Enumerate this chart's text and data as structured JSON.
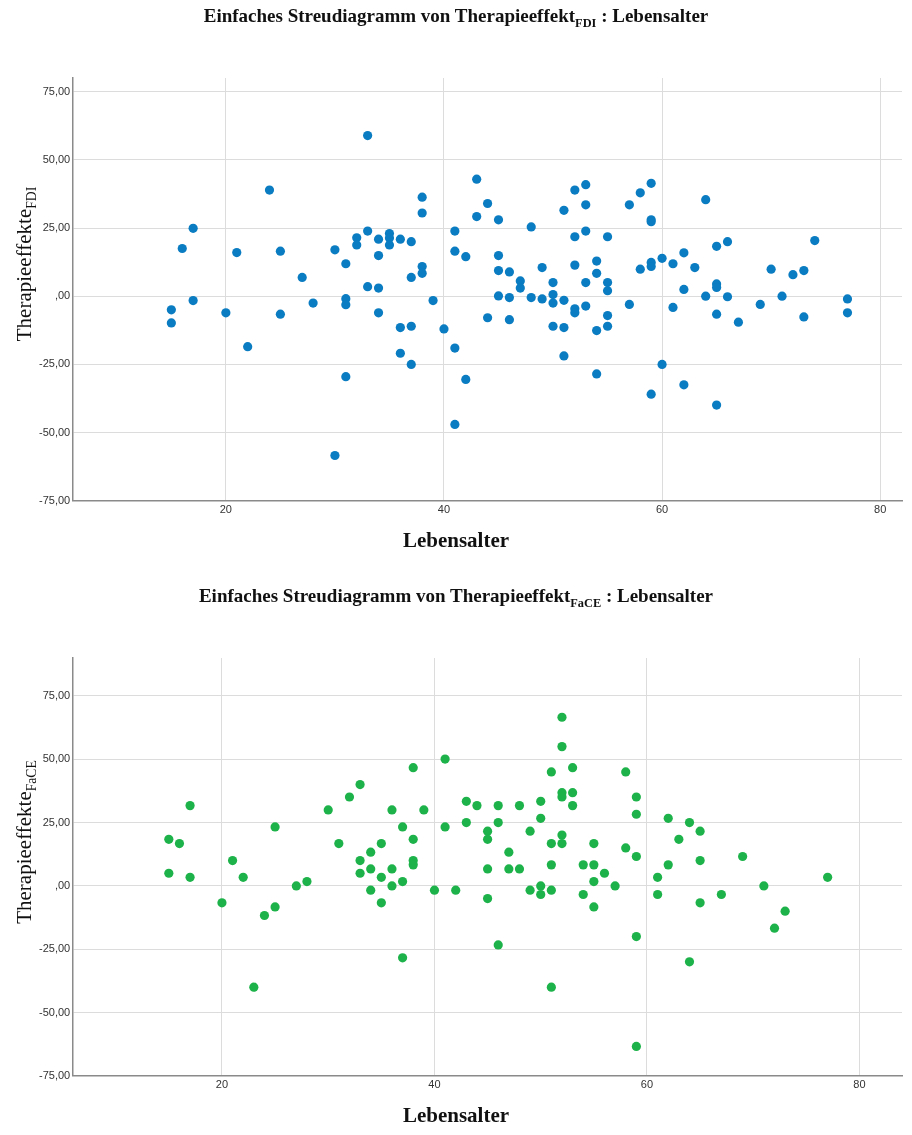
{
  "chart_data": [
    {
      "type": "scatter",
      "title": "Einfaches Streudiagramm von Therapieeffekt$_{FDI}$ : Lebensalter",
      "xlabel": "Lebensalter",
      "ylabel": "Therapieeffekte$_{FDI}$",
      "x": [
        33,
        24,
        43,
        44,
        38,
        38,
        43,
        17,
        41,
        33,
        32,
        32,
        34,
        35,
        35,
        35,
        36,
        37,
        16,
        21,
        25,
        30,
        34,
        41,
        42,
        31,
        38,
        38,
        27,
        37,
        33,
        34,
        17,
        39,
        31,
        31,
        28,
        15,
        15,
        20,
        25,
        34,
        44,
        36,
        37,
        40,
        22,
        41,
        36,
        37,
        31,
        42,
        41,
        30,
        45,
        48,
        45,
        45,
        45,
        46,
        46,
        46,
        47,
        47,
        48,
        49,
        49,
        50,
        50,
        50,
        50,
        51,
        51,
        51,
        51,
        52,
        52,
        52,
        52,
        52,
        53,
        53,
        53,
        53,
        53,
        54,
        54,
        54,
        54,
        55,
        55,
        55,
        55,
        55,
        57,
        57,
        58,
        58,
        59,
        59,
        59,
        59,
        59,
        59,
        60,
        60,
        61,
        61,
        62,
        62,
        62,
        63,
        64,
        64,
        65,
        65,
        65,
        65,
        65,
        66,
        66,
        67,
        69,
        70,
        71,
        72,
        73,
        73,
        74,
        77,
        77
      ],
      "values": [
        58.9,
        38.9,
        42.9,
        34,
        36.3,
        30.5,
        29.2,
        24.9,
        23.9,
        23.9,
        21.4,
        18.8,
        20.9,
        23,
        21.3,
        18.8,
        20.9,
        20,
        17.5,
        16,
        16.5,
        17,
        14.9,
        16.5,
        14.5,
        11.9,
        10.9,
        8.4,
        6.9,
        6.9,
        3.5,
        3,
        -1.6,
        -1.6,
        -0.9,
        -3.1,
        -2.5,
        -5,
        -9.8,
        -6.1,
        -6.6,
        -6.1,
        -7.9,
        -11.5,
        -11,
        -12,
        -18.5,
        -19,
        -20.9,
        -25,
        -29.5,
        -30.5,
        -47,
        -58.4,
        28,
        25.4,
        14.9,
        9.4,
        0.1,
        8.9,
        -0.5,
        -8.6,
        5.6,
        3,
        -0.5,
        10.5,
        -1,
        5,
        0.6,
        -2.5,
        -11,
        31.5,
        -1.5,
        -11.5,
        -21.9,
        38.9,
        21.8,
        11.4,
        -4.6,
        -6.1,
        40.9,
        33.5,
        23.9,
        5,
        -3.6,
        12.9,
        8.4,
        -12.6,
        -28.5,
        21.8,
        5,
        2,
        -7.1,
        -11,
        33.5,
        -3,
        37.9,
        9.9,
        41.4,
        28,
        27.3,
        12.4,
        10.9,
        -35.9,
        13.9,
        -25,
        11.9,
        -4.1,
        15.9,
        2.5,
        -32.5,
        10.5,
        35.4,
        0,
        18.3,
        4.5,
        3.2,
        -6.6,
        -39.9,
        20,
        -0.2,
        -9.5,
        -3,
        9.9,
        0,
        7.9,
        9.4,
        -7.6,
        20.4,
        -1,
        -6.1
      ],
      "color": "#0a7cc1",
      "marker": "circle",
      "grid": true,
      "xlim": [
        6,
        82
      ],
      "xticks": [
        20,
        40,
        60,
        80
      ],
      "ylim": [
        -75,
        80
      ],
      "yticks": [
        {
          "value": -75,
          "label": "-75,00"
        },
        {
          "value": -50,
          "label": "-50,00"
        },
        {
          "value": -25,
          "label": "-25,00"
        },
        {
          "value": 0,
          "label": ",00"
        },
        {
          "value": 25,
          "label": "25,00"
        },
        {
          "value": 50,
          "label": "50,00"
        },
        {
          "value": 75,
          "label": "75,00"
        }
      ]
    },
    {
      "type": "scatter",
      "title": "Einfaches Streudiagramm von Therapieeffekt$_{FaCE}$ : Lebensalter",
      "xlabel": "Lebensalter",
      "ylabel": "Therapieeffekte$_{FaCE}$",
      "x": [
        15,
        15,
        16,
        17,
        17,
        20,
        21,
        22,
        23,
        24,
        25,
        25,
        27,
        28,
        30,
        31,
        32,
        33,
        33,
        33,
        34,
        34,
        34,
        35,
        35,
        35,
        36,
        36,
        36,
        37,
        37,
        37,
        38,
        38,
        38,
        38,
        39,
        40,
        41,
        41,
        42,
        43,
        43,
        44,
        45,
        45,
        45,
        45,
        46,
        46,
        46,
        47,
        47,
        48,
        48,
        49,
        49,
        50,
        50,
        50,
        50,
        51,
        51,
        51,
        51,
        51,
        52,
        52,
        52,
        52,
        52,
        52,
        53,
        53,
        53,
        54,
        54,
        55,
        55,
        55,
        55,
        56,
        57,
        58,
        58,
        59,
        59,
        59,
        59,
        59,
        61,
        61,
        62,
        62,
        63,
        64,
        64,
        65,
        65,
        65,
        67,
        69,
        71,
        72,
        73,
        77
      ],
      "values": [
        18.4,
        5,
        16.7,
        31.7,
        3.4,
        -6.7,
        10,
        3.4,
        -40,
        -11.7,
        23.3,
        -8.3,
        0,
        1.7,
        30,
        16.7,
        35.1,
        40,
        10,
        5,
        13.3,
        6.7,
        -1.7,
        16.7,
        3.4,
        -6.7,
        30,
        6.7,
        0,
        23.3,
        1.7,
        -28.4,
        46.7,
        18.4,
        10,
        8.3,
        30,
        -1.7,
        50.1,
        23.3,
        -1.7,
        33.4,
        25,
        31.7,
        21.6,
        18.4,
        6.7,
        -5,
        31.7,
        25,
        -23.3,
        13.3,
        6.7,
        31.7,
        6.7,
        21.6,
        -1.7,
        33.4,
        26.7,
        0,
        -3.4,
        45,
        16.7,
        8.3,
        -1.7,
        -40,
        66.6,
        55,
        36.8,
        35.1,
        20.1,
        16.7,
        46.7,
        36.8,
        31.7,
        8.3,
        -3.4,
        16.7,
        8.3,
        1.7,
        -8.3,
        5,
        0,
        45,
        15,
        35.1,
        28.3,
        11.6,
        -20,
        -63.4,
        3.4,
        -3.4,
        26.7,
        8.3,
        18.4,
        25,
        -30,
        21.6,
        10,
        -6.7,
        -3.4,
        11.6,
        0,
        -16.7,
        -10,
        3.4
      ],
      "color": "#1db34a",
      "marker": "circle",
      "grid": true,
      "xlim": [
        6,
        84
      ],
      "xticks": [
        20,
        40,
        60,
        80
      ],
      "ylim": [
        -75,
        90
      ],
      "yticks": [
        {
          "value": -75,
          "label": "-75,00"
        },
        {
          "value": -50,
          "label": "-50,00"
        },
        {
          "value": -25,
          "label": "-25,00"
        },
        {
          "value": 0,
          "label": ",00"
        },
        {
          "value": 25,
          "label": "25,00"
        },
        {
          "value": 50,
          "label": "50,00"
        },
        {
          "value": 75,
          "label": "75,00"
        }
      ]
    }
  ]
}
